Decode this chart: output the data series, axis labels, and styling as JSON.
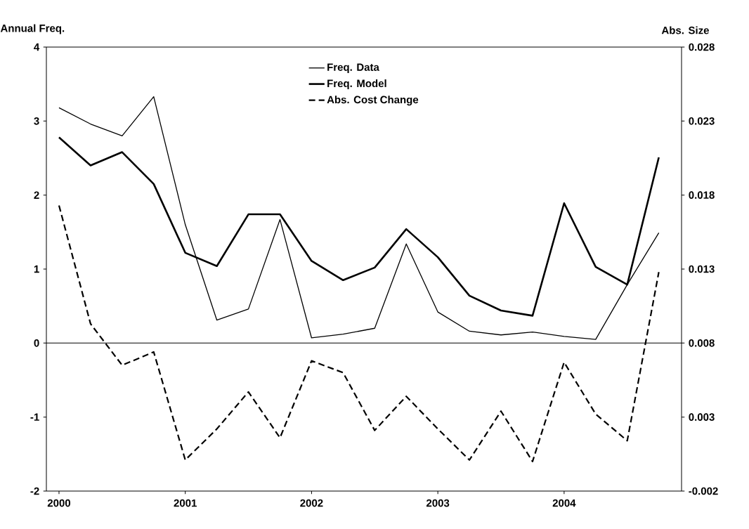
{
  "chart_data": {
    "type": "line",
    "ylabel": "Annual Freq.",
    "y2label": "Abs. Size",
    "x": [
      2000,
      2000.25,
      2000.5,
      2000.75,
      2001,
      2001.25,
      2001.5,
      2001.75,
      2002,
      2002.25,
      2002.5,
      2002.75,
      2003,
      2003.25,
      2003.5,
      2003.75,
      2004,
      2004.25,
      2004.5,
      2004.75
    ],
    "series": [
      {
        "name": "Freq. Data",
        "color": "#000000",
        "line_style": "solid",
        "values": [
          3.18,
          2.96,
          2.8,
          3.33,
          1.6,
          0.31,
          0.46,
          1.67,
          0.07,
          0.12,
          0.2,
          1.34,
          0.42,
          0.16,
          0.11,
          0.15,
          0.09,
          0.05,
          0.79,
          1.49
        ]
      },
      {
        "name": "Freq. Model",
        "color": "#000000",
        "line_style": "solid",
        "values": [
          2.78,
          2.4,
          2.58,
          2.15,
          1.22,
          1.04,
          1.74,
          1.74,
          1.11,
          0.85,
          1.02,
          1.54,
          1.16,
          0.64,
          0.44,
          0.37,
          1.89,
          1.03,
          0.79,
          2.51
        ]
      },
      {
        "name": "Abs. Cost Change",
        "color": "#000000",
        "line_style": "dashed",
        "axis": "y2",
        "values": [
          0.0173,
          0.0093,
          0.0065,
          0.0074,
          0.0001,
          0.0022,
          0.0047,
          0.0016,
          0.0068,
          0.006,
          0.0021,
          0.0044,
          0.0022,
          0.0001,
          0.0034,
          0.0,
          0.0067,
          0.0032,
          0.0014,
          0.0128
        ]
      }
    ],
    "xlim": [
      1999.9,
      2004.93
    ],
    "xticks": [
      2000,
      2001,
      2002,
      2003,
      2004
    ],
    "ylim": [
      -2,
      4
    ],
    "yticks": [
      -2,
      -1,
      0,
      1,
      2,
      3,
      4
    ],
    "y2lim": [
      -0.002,
      0.028
    ],
    "y2ticks": [
      -0.002,
      0.003,
      0.008,
      0.013,
      0.018,
      0.023,
      0.028
    ],
    "ref_lines": [
      {
        "axis": "y",
        "value": 0,
        "color": "#000000"
      }
    ],
    "legend": "top",
    "marker": "none",
    "grid": false
  }
}
